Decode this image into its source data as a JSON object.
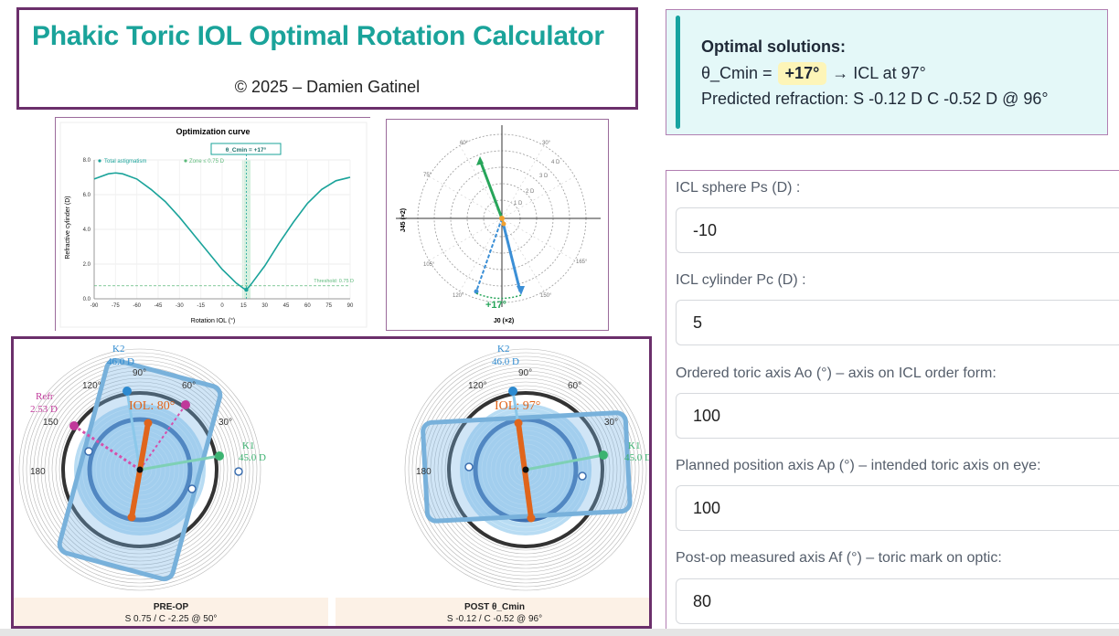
{
  "header": {
    "title": "Phakic Toric IOL Optimal Rotation Calculator",
    "copyright": "© 2025 – Damien Gatinel"
  },
  "solution": {
    "heading": "Optimal solutions:",
    "theta_prefix": "θ_Cmin =",
    "theta_value": "+17°",
    "theta_suffix": "→ ICL at 97°",
    "refraction": "Predicted refraction: S -0.12 D C -0.52 D @ 96°",
    "accent_color": "#17a3a0"
  },
  "chart_data": [
    {
      "type": "line",
      "title": "Optimization curve",
      "xlabel": "Rotation IOL (°)",
      "ylabel": "Refractive cylinder (D)",
      "xlim": [
        -90,
        90
      ],
      "ylim": [
        0,
        8
      ],
      "x_ticks": [
        "-90",
        "-75",
        "-60",
        "-45",
        "-30",
        "-15",
        "0",
        "15",
        "30",
        "45",
        "60",
        "75",
        "90"
      ],
      "y_ticks": [
        "0.0",
        "2.0",
        "4.0",
        "6.0",
        "8.0"
      ],
      "series": [
        {
          "name": "Total astigmatism",
          "color": "#1aa39a",
          "x": [
            -90,
            -80,
            -75,
            -70,
            -60,
            -50,
            -40,
            -30,
            -20,
            -10,
            0,
            10,
            15,
            17,
            20,
            30,
            40,
            50,
            60,
            70,
            80,
            90
          ],
          "y": [
            6.9,
            7.2,
            7.25,
            7.2,
            6.9,
            6.3,
            5.6,
            4.7,
            3.7,
            2.7,
            1.7,
            0.9,
            0.6,
            0.52,
            0.8,
            1.9,
            3.2,
            4.4,
            5.5,
            6.3,
            6.8,
            7.0
          ]
        }
      ],
      "legend": [
        "Total astigmatism",
        "Zone ≤ 0.75 D"
      ],
      "threshold": 0.75,
      "threshold_label": "Threshold: 0.75 D",
      "marker_label": "θ_Cmin = +17°",
      "marker_x": 17
    },
    {
      "type": "scatter",
      "title": "",
      "xlabel": "J0 (×2)",
      "ylabel": "J45 (×2)",
      "angle_labels": [
        "60°",
        "30°",
        "75°",
        "105°",
        "120°",
        "150°",
        "165°"
      ],
      "ring_labels": [
        "1 D",
        "2 D",
        "3 D",
        "4 D"
      ],
      "annotation": "+17°"
    }
  ],
  "eyes": {
    "pre": {
      "k2_label": "K2",
      "k2_value": "46.0 D",
      "k1_label": "K1",
      "k1_value": "45.0 D",
      "refr_label": "Refr",
      "refr_value": "2.53 D",
      "iol_label": "IOL: 80°",
      "deg_labels": [
        "120°",
        "90°",
        "60°",
        "30°",
        "150",
        "180"
      ],
      "caption_title": "PRE-OP",
      "caption_sub": "S 0.75  /  C -2.25  @ 50°",
      "rotation": 80
    },
    "post": {
      "k2_label": "K2",
      "k2_value": "46.0 D",
      "k1_label": "K1",
      "k1_value": "45.0 D",
      "iol_label": "IOL: 97°",
      "deg_labels": [
        "120°",
        "90°",
        "60°",
        "30°",
        "180"
      ],
      "caption_title": "POST θ_Cmin",
      "caption_sub": "S -0.12  /  C -0.52  @ 96°",
      "rotation": 97
    }
  },
  "form": {
    "fields": [
      {
        "label": "ICL sphere Ps (D) :",
        "value": "-10"
      },
      {
        "label": "ICL cylinder Pc (D) :",
        "value": "5"
      },
      {
        "label": "Ordered toric axis Ao (°) – axis on ICL order form:",
        "value": "100"
      },
      {
        "label": "Planned position axis Ap (°) – intended toric axis on eye:",
        "value": "100"
      },
      {
        "label": "Post-op measured axis Af (°) – toric mark on optic:",
        "value": "80"
      }
    ]
  }
}
